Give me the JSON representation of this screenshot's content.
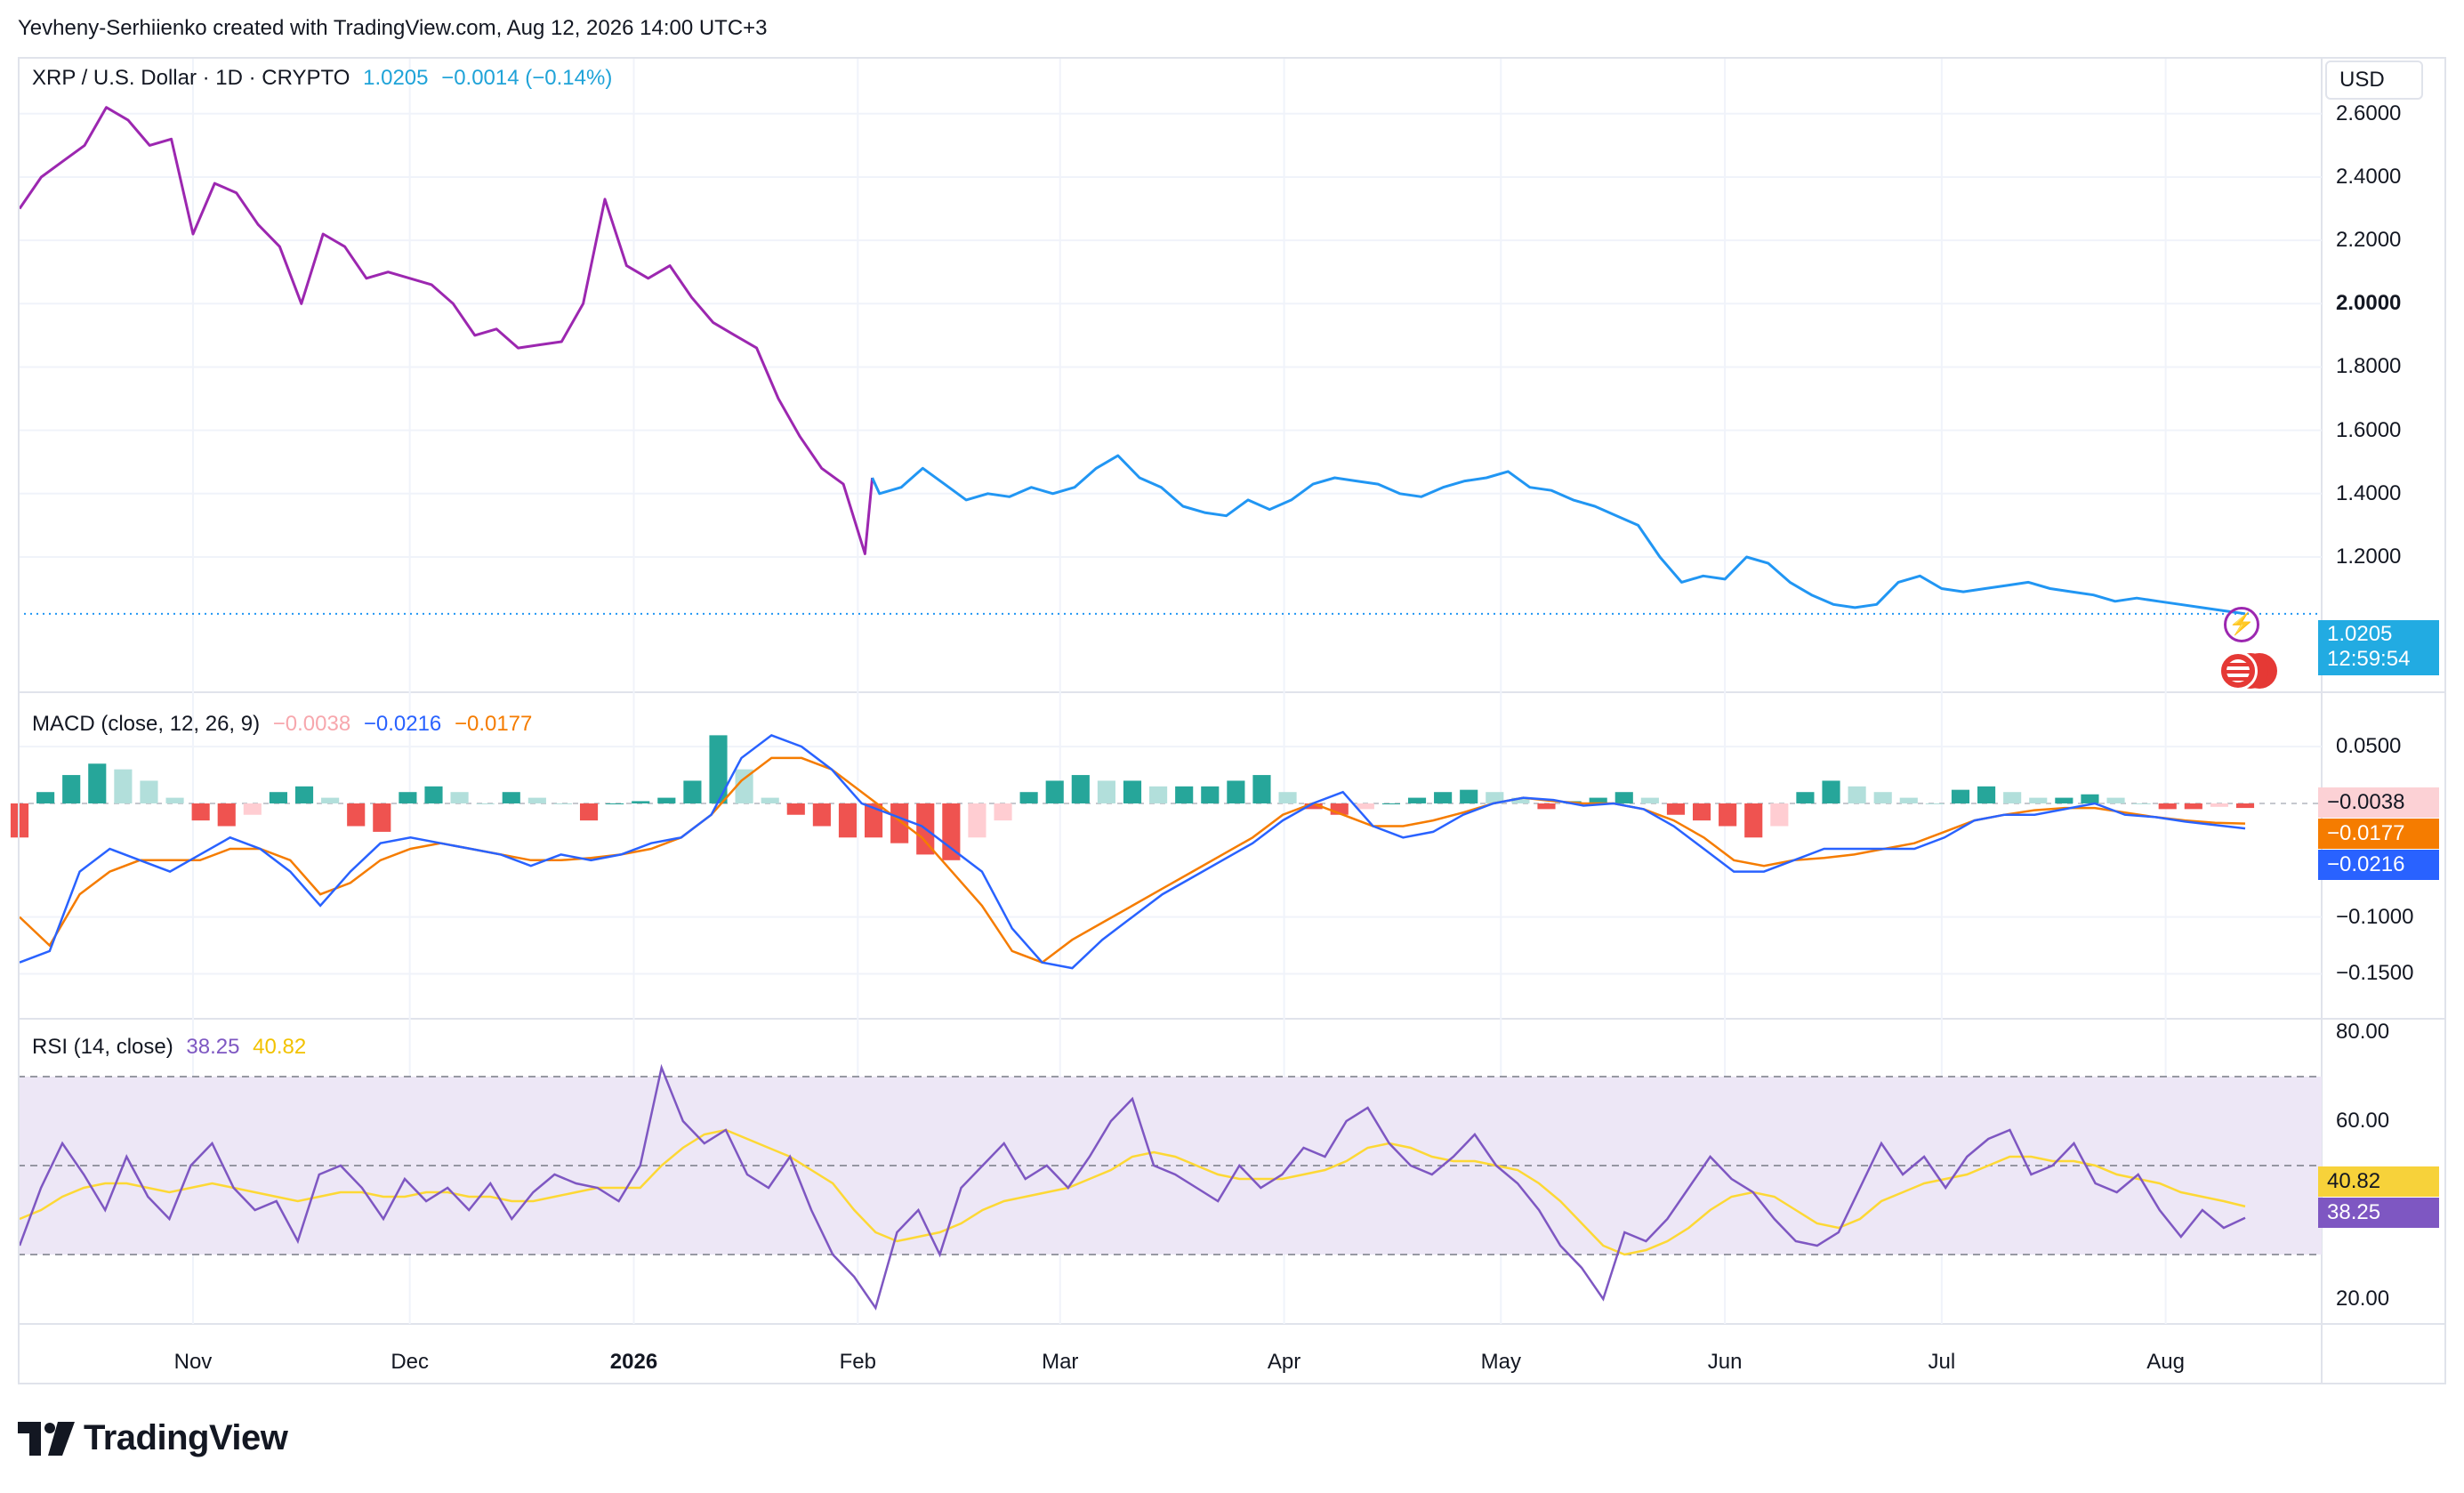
{
  "header": {
    "credit": "Yevheny-Serhiienko created with TradingView.com, Aug 12, 2026 14:00 UTC+3"
  },
  "price_legend": {
    "symbol": "XRP / U.S. Dollar · 1D · CRYPTO",
    "last": "1.0205",
    "change": "−0.0014 (−0.14%)"
  },
  "macd_legend": {
    "name": "MACD (close, 12, 26, 9)",
    "hist": "−0.0038",
    "macd": "−0.0216",
    "signal": "−0.0177"
  },
  "rsi_legend": {
    "name": "RSI (14, close)",
    "rsi": "38.25",
    "ma": "40.82"
  },
  "currency": "USD",
  "price_tag": {
    "value": "1.0205",
    "countdown": "12:59:54"
  },
  "macd_tags": {
    "hist": "−0.0038",
    "signal": "−0.0177",
    "macd": "−0.0216"
  },
  "rsi_tags": {
    "ma": "40.82",
    "rsi": "38.25"
  },
  "brand": "TradingView",
  "icons": {
    "bolt": "lightning-bolt-icon",
    "flag": "us-flag-icon",
    "logo": "tradingview-logo-icon"
  },
  "colors": {
    "purple": "#9c27b0",
    "price_blue": "#2196f3",
    "macd": "#2962ff",
    "signal": "#f57c00",
    "hist_up": "#26a69a",
    "hist_down": "#ef5350",
    "rsi": "#7e57c2",
    "rsi_ma": "#fdd835",
    "rsi_band": "#ede7f6"
  },
  "chart_data": [
    {
      "type": "line",
      "title": "XRP / U.S. Dollar · 1D · CRYPTO",
      "xlabel": "",
      "ylabel": "USD",
      "x_ticks": [
        {
          "label": "Nov",
          "date": "2025-11-01",
          "bold": false
        },
        {
          "label": "Dec",
          "date": "2025-12-01",
          "bold": false
        },
        {
          "label": "2026",
          "date": "2026-01-01",
          "bold": true
        },
        {
          "label": "Feb",
          "date": "2026-02-01",
          "bold": false
        },
        {
          "label": "Mar",
          "date": "2026-03-01",
          "bold": false
        },
        {
          "label": "Apr",
          "date": "2026-04-01",
          "bold": false
        },
        {
          "label": "May",
          "date": "2026-05-01",
          "bold": false
        },
        {
          "label": "Jun",
          "date": "2026-06-01",
          "bold": false
        },
        {
          "label": "Jul",
          "date": "2026-07-01",
          "bold": false
        },
        {
          "label": "Aug",
          "date": "2026-08-01",
          "bold": false
        }
      ],
      "y_ticks": [
        "2.6000",
        "2.4000",
        "2.2000",
        "2.0000",
        "1.8000",
        "1.6000",
        "1.4000",
        "1.2000"
      ],
      "ylim": [
        1.02,
        2.65
      ],
      "series": [
        {
          "x": [
            "2025-10-08",
            "2025-10-11",
            "2025-10-14",
            "2025-10-17",
            "2025-10-20",
            "2025-10-23",
            "2025-10-26",
            "2025-10-29",
            "2025-11-01",
            "2025-11-04",
            "2025-11-07",
            "2025-11-10",
            "2025-11-13",
            "2025-11-16",
            "2025-11-19",
            "2025-11-22",
            "2025-11-25",
            "2025-11-28",
            "2025-12-01",
            "2025-12-04",
            "2025-12-07",
            "2025-12-10",
            "2025-12-13",
            "2025-12-16",
            "2025-12-19",
            "2025-12-22",
            "2025-12-25",
            "2025-12-28",
            "2025-12-31",
            "2026-01-03",
            "2026-01-06",
            "2026-01-09",
            "2026-01-12",
            "2026-01-15",
            "2026-01-18",
            "2026-01-21",
            "2026-01-24",
            "2026-01-27",
            "2026-01-30",
            "2026-02-02",
            "2026-02-03",
            "2026-02-04",
            "2026-02-07",
            "2026-02-10",
            "2026-02-13",
            "2026-02-16",
            "2026-02-19",
            "2026-02-22",
            "2026-02-25",
            "2026-02-28",
            "2026-03-03",
            "2026-03-06",
            "2026-03-09",
            "2026-03-12",
            "2026-03-15",
            "2026-03-18",
            "2026-03-21",
            "2026-03-24",
            "2026-03-27",
            "2026-03-30",
            "2026-04-02",
            "2026-04-05",
            "2026-04-08",
            "2026-04-11",
            "2026-04-14",
            "2026-04-17",
            "2026-04-20",
            "2026-04-23",
            "2026-04-26",
            "2026-04-29",
            "2026-05-02",
            "2026-05-05",
            "2026-05-08",
            "2026-05-11",
            "2026-05-14",
            "2026-05-17",
            "2026-05-20",
            "2026-05-23",
            "2026-05-26",
            "2026-05-29",
            "2026-06-01",
            "2026-06-04",
            "2026-06-07",
            "2026-06-10",
            "2026-06-13",
            "2026-06-16",
            "2026-06-19",
            "2026-06-22",
            "2026-06-25",
            "2026-06-28",
            "2026-07-01",
            "2026-07-04",
            "2026-07-07",
            "2026-07-10",
            "2026-07-13",
            "2026-07-16",
            "2026-07-19",
            "2026-07-22",
            "2026-07-25",
            "2026-07-28",
            "2026-07-31",
            "2026-08-03",
            "2026-08-06",
            "2026-08-09",
            "2026-08-12"
          ],
          "y": [
            2.3,
            2.4,
            2.45,
            2.5,
            2.62,
            2.58,
            2.5,
            2.52,
            2.22,
            2.38,
            2.35,
            2.25,
            2.18,
            2.0,
            2.22,
            2.18,
            2.08,
            2.1,
            2.08,
            2.06,
            2.0,
            1.9,
            1.92,
            1.86,
            1.87,
            1.88,
            2.0,
            2.33,
            2.12,
            2.08,
            2.12,
            2.02,
            1.94,
            1.9,
            1.86,
            1.7,
            1.58,
            1.48,
            1.43,
            1.21,
            1.45,
            1.4,
            1.42,
            1.48,
            1.43,
            1.38,
            1.4,
            1.39,
            1.42,
            1.4,
            1.42,
            1.48,
            1.52,
            1.45,
            1.42,
            1.36,
            1.34,
            1.33,
            1.38,
            1.35,
            1.38,
            1.43,
            1.45,
            1.44,
            1.43,
            1.4,
            1.39,
            1.42,
            1.44,
            1.45,
            1.47,
            1.42,
            1.41,
            1.38,
            1.36,
            1.33,
            1.3,
            1.2,
            1.12,
            1.14,
            1.13,
            1.2,
            1.18,
            1.12,
            1.08,
            1.05,
            1.04,
            1.05,
            1.12,
            1.14,
            1.1,
            1.09,
            1.1,
            1.11,
            1.12,
            1.1,
            1.09,
            1.08,
            1.06,
            1.07,
            1.06,
            1.05,
            1.04,
            1.03,
            1.0205
          ],
          "split_date": "2026-02-03"
        }
      ]
    },
    {
      "type": "bar",
      "title": "MACD (close, 12, 26, 9)",
      "xlabel": "",
      "ylabel": "",
      "y_ticks": [
        "0.0500",
        "−0.1000",
        "−0.1500"
      ],
      "ylim": [
        -0.17,
        0.065
      ],
      "series": [
        {
          "name": "Histogram",
          "values": [
            -0.03,
            0.01,
            0.025,
            0.035,
            0.03,
            0.02,
            0.005,
            -0.015,
            -0.02,
            -0.01,
            0.01,
            0.015,
            0.005,
            -0.02,
            -0.025,
            0.01,
            0.015,
            0.01,
            0.0,
            0.01,
            0.005,
            0.0,
            -0.015,
            0.0,
            0.002,
            0.005,
            0.02,
            0.06,
            0.03,
            0.005,
            -0.01,
            -0.02,
            -0.03,
            -0.03,
            -0.035,
            -0.045,
            -0.05,
            -0.03,
            -0.015,
            0.01,
            0.02,
            0.025,
            0.02,
            0.02,
            0.015,
            0.015,
            0.015,
            0.02,
            0.025,
            0.01,
            -0.005,
            -0.01,
            -0.005,
            0.0,
            0.005,
            0.01,
            0.012,
            0.01,
            0.005,
            -0.005,
            0.002,
            0.005,
            0.01,
            0.005,
            -0.01,
            -0.015,
            -0.02,
            -0.03,
            -0.02,
            0.01,
            0.02,
            0.015,
            0.01,
            0.005,
            0.0,
            0.012,
            0.015,
            0.01,
            0.005,
            0.005,
            0.008,
            0.005,
            0.0,
            -0.005,
            -0.005,
            -0.003,
            -0.004
          ]
        },
        {
          "name": "MACD",
          "values": [
            -0.14,
            -0.13,
            -0.06,
            -0.04,
            -0.05,
            -0.06,
            -0.045,
            -0.03,
            -0.04,
            -0.06,
            -0.09,
            -0.06,
            -0.035,
            -0.03,
            -0.035,
            -0.04,
            -0.045,
            -0.055,
            -0.045,
            -0.05,
            -0.045,
            -0.035,
            -0.03,
            -0.01,
            0.04,
            0.06,
            0.05,
            0.03,
            0.0,
            -0.01,
            -0.02,
            -0.04,
            -0.06,
            -0.11,
            -0.14,
            -0.145,
            -0.12,
            -0.1,
            -0.08,
            -0.065,
            -0.05,
            -0.035,
            -0.015,
            0.0,
            0.01,
            -0.02,
            -0.03,
            -0.025,
            -0.01,
            0.0,
            0.005,
            0.003,
            -0.002,
            0.0,
            -0.005,
            -0.02,
            -0.04,
            -0.06,
            -0.06,
            -0.05,
            -0.04,
            -0.04,
            -0.04,
            -0.04,
            -0.03,
            -0.015,
            -0.01,
            -0.01,
            -0.005,
            0.0,
            -0.01,
            -0.012,
            -0.016,
            -0.019,
            -0.022
          ]
        },
        {
          "name": "Signal",
          "values": [
            -0.1,
            -0.125,
            -0.08,
            -0.06,
            -0.05,
            -0.05,
            -0.05,
            -0.04,
            -0.04,
            -0.05,
            -0.08,
            -0.07,
            -0.05,
            -0.04,
            -0.035,
            -0.04,
            -0.045,
            -0.05,
            -0.05,
            -0.048,
            -0.045,
            -0.04,
            -0.03,
            -0.01,
            0.02,
            0.04,
            0.04,
            0.03,
            0.01,
            -0.01,
            -0.03,
            -0.06,
            -0.09,
            -0.13,
            -0.14,
            -0.12,
            -0.105,
            -0.09,
            -0.075,
            -0.06,
            -0.045,
            -0.03,
            -0.01,
            0.0,
            -0.01,
            -0.02,
            -0.02,
            -0.015,
            -0.008,
            0.0,
            0.005,
            0.002,
            0.0,
            0.0,
            -0.005,
            -0.015,
            -0.03,
            -0.05,
            -0.055,
            -0.05,
            -0.048,
            -0.045,
            -0.04,
            -0.035,
            -0.025,
            -0.015,
            -0.01,
            -0.006,
            -0.004,
            -0.004,
            -0.008,
            -0.012,
            -0.015,
            -0.017,
            -0.0177
          ]
        }
      ]
    },
    {
      "type": "line",
      "title": "RSI (14, close)",
      "xlabel": "",
      "ylabel": "",
      "y_ticks": [
        "80.00",
        "60.00",
        "20.00"
      ],
      "ylim": [
        16,
        82
      ],
      "bands": [
        70,
        50,
        30
      ],
      "series": [
        {
          "name": "RSI",
          "values": [
            32,
            45,
            55,
            48,
            40,
            52,
            43,
            38,
            50,
            55,
            45,
            40,
            42,
            33,
            48,
            50,
            45,
            38,
            47,
            42,
            45,
            40,
            46,
            38,
            44,
            48,
            46,
            45,
            42,
            50,
            72,
            60,
            55,
            58,
            48,
            45,
            52,
            40,
            30,
            25,
            18,
            35,
            40,
            30,
            45,
            50,
            55,
            47,
            50,
            45,
            52,
            60,
            65,
            50,
            48,
            45,
            42,
            50,
            45,
            48,
            54,
            52,
            60,
            63,
            55,
            50,
            48,
            52,
            57,
            50,
            46,
            40,
            32,
            27,
            20,
            35,
            33,
            38,
            45,
            52,
            47,
            44,
            38,
            33,
            32,
            35,
            45,
            55,
            48,
            52,
            45,
            52,
            56,
            58,
            48,
            50,
            55,
            46,
            44,
            48,
            40,
            34,
            40,
            36,
            38.25
          ]
        },
        {
          "name": "RSI-based MA",
          "values": [
            38,
            40,
            43,
            45,
            46,
            46,
            45,
            44,
            45,
            46,
            45,
            44,
            43,
            42,
            43,
            44,
            44,
            43,
            43,
            44,
            44,
            43,
            43,
            42,
            42,
            43,
            44,
            45,
            45,
            45,
            50,
            54,
            57,
            58,
            56,
            54,
            52,
            49,
            46,
            40,
            35,
            33,
            34,
            35,
            37,
            40,
            42,
            43,
            44,
            45,
            47,
            49,
            52,
            53,
            52,
            50,
            48,
            47,
            47,
            47,
            48,
            49,
            51,
            54,
            55,
            54,
            52,
            51,
            51,
            50,
            49,
            46,
            42,
            37,
            32,
            30,
            31,
            33,
            36,
            40,
            43,
            44,
            43,
            40,
            37,
            36,
            38,
            42,
            44,
            46,
            47,
            48,
            50,
            52,
            52,
            51,
            51,
            50,
            48,
            47,
            46,
            44,
            43,
            42,
            40.82
          ]
        }
      ]
    }
  ]
}
